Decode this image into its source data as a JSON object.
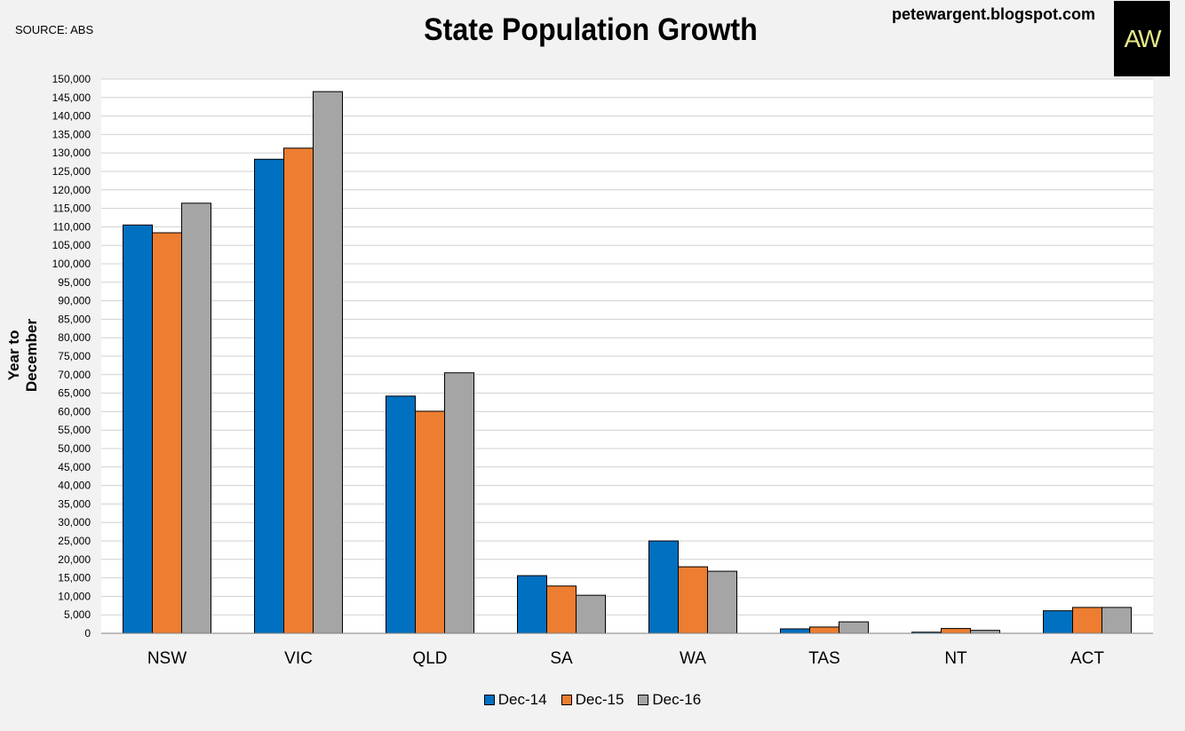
{
  "header": {
    "source": "SOURCE: ABS",
    "blog": "petewargent.blogspot.com",
    "logo_text": "AW"
  },
  "chart_data": {
    "type": "bar",
    "title": "State Population Growth",
    "xlabel": "",
    "ylabel": "Year to December",
    "ylim": [
      0,
      150000
    ],
    "ytick_step": 5000,
    "categories": [
      "NSW",
      "VIC",
      "QLD",
      "SA",
      "WA",
      "TAS",
      "NT",
      "ACT"
    ],
    "series": [
      {
        "name": "Dec-14",
        "color": "#0070c0",
        "values": [
          110500,
          128300,
          64200,
          15600,
          25000,
          1200,
          300,
          6100
        ]
      },
      {
        "name": "Dec-15",
        "color": "#ed7d31",
        "values": [
          108400,
          131300,
          60100,
          12800,
          18000,
          1700,
          1300,
          7000
        ]
      },
      {
        "name": "Dec-16",
        "color": "#a5a5a5",
        "values": [
          116400,
          146600,
          70500,
          10300,
          16800,
          3100,
          800,
          7000
        ]
      }
    ],
    "grid": true,
    "legend_position": "bottom"
  }
}
